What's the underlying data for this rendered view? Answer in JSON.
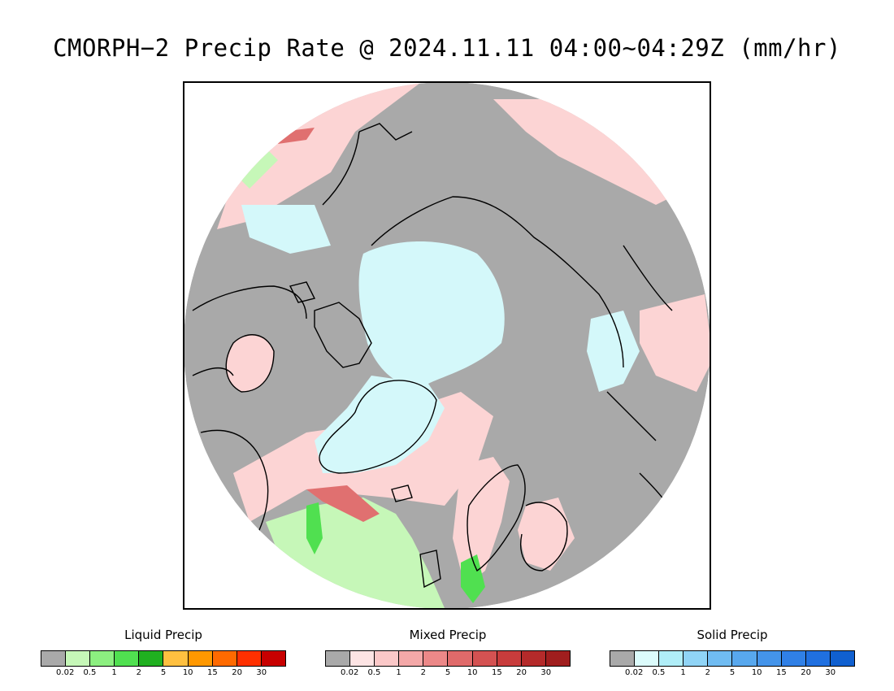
{
  "title": "CMORPH−2 Precip Rate @ 2024.11.11 04:00~04:29Z (mm/hr)",
  "map": {
    "projection": "north-polar-stereographic",
    "region": "Arctic",
    "colors": {
      "no_precip": "#a9a9a9",
      "solid_light": "#d4f8fa",
      "mixed_light": "#fcd4d4",
      "liquid_light": "#c6f7b8",
      "liquid_medium": "#50e050",
      "mixed_medium": "#e07070",
      "coastline": "#000000"
    }
  },
  "legends": [
    {
      "title": "Liquid Precip",
      "colors": [
        "#a9a9a9",
        "#c6f7b8",
        "#8cef80",
        "#50e050",
        "#20b020",
        "#ffc040",
        "#ff9800",
        "#ff6a00",
        "#ff3000",
        "#c80000"
      ],
      "ticks": [
        "0.02",
        "0.5",
        "1",
        "2",
        "5",
        "10",
        "15",
        "20",
        "30"
      ]
    },
    {
      "title": "Mixed Precip",
      "colors": [
        "#a9a9a9",
        "#fde4e4",
        "#fbc8c8",
        "#f4a8a8",
        "#ec8888",
        "#e06a6a",
        "#d45252",
        "#c83c3c",
        "#b42a2a",
        "#a01e1e"
      ],
      "ticks": [
        "0.02",
        "0.5",
        "1",
        "2",
        "5",
        "10",
        "15",
        "20",
        "30"
      ]
    },
    {
      "title": "Solid Precip",
      "colors": [
        "#a9a9a9",
        "#dcfcfc",
        "#b0eef8",
        "#90d4f6",
        "#70bcf2",
        "#58a8ee",
        "#4494ea",
        "#3080e6",
        "#2070e0",
        "#1060d0"
      ],
      "ticks": [
        "0.02",
        "0.5",
        "1",
        "2",
        "5",
        "10",
        "15",
        "20",
        "30"
      ]
    }
  ]
}
